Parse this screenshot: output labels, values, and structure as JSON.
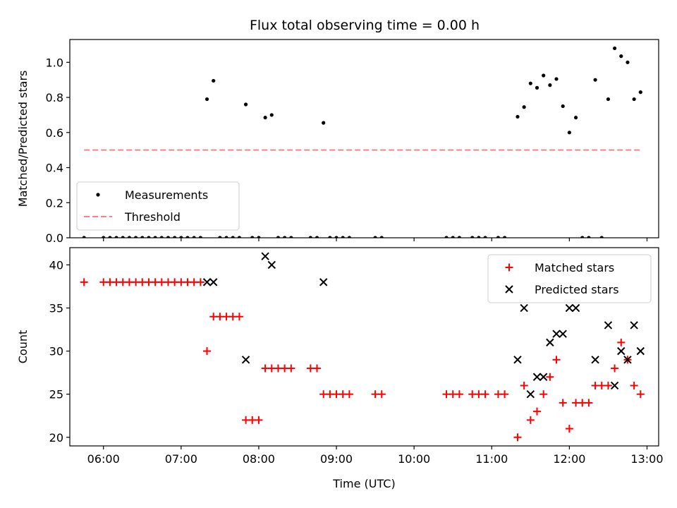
{
  "title": "Flux total observing time = 0.00 h",
  "chart_data": [
    {
      "type": "scatter",
      "panel": "top",
      "ylabel": "Matched/Predicted stars",
      "xlabel": "",
      "xlim": [
        "05:34",
        "13:09"
      ],
      "ylim": [
        0.0,
        1.13
      ],
      "yticks": [
        0.0,
        0.2,
        0.4,
        0.6,
        0.8,
        1.0
      ],
      "ytick_labels": [
        "0.0",
        "0.2",
        "0.4",
        "0.6",
        "0.8",
        "1.0"
      ],
      "grid": false,
      "legend_position": "lower-left",
      "series": [
        {
          "name": "Measurements",
          "marker": "dot",
          "color": "#000000",
          "points": [
            [
              "05:45",
              0
            ],
            [
              "06:00",
              0
            ],
            [
              "06:05",
              0
            ],
            [
              "06:10",
              0
            ],
            [
              "06:15",
              0
            ],
            [
              "06:20",
              0
            ],
            [
              "06:25",
              0
            ],
            [
              "06:30",
              0
            ],
            [
              "06:35",
              0
            ],
            [
              "06:40",
              0
            ],
            [
              "06:45",
              0
            ],
            [
              "06:50",
              0
            ],
            [
              "06:55",
              0
            ],
            [
              "07:00",
              0
            ],
            [
              "07:05",
              0
            ],
            [
              "07:10",
              0
            ],
            [
              "07:15",
              0
            ],
            [
              "07:20",
              0.79
            ],
            [
              "07:25",
              0.895
            ],
            [
              "07:30",
              0
            ],
            [
              "07:35",
              0
            ],
            [
              "07:40",
              0
            ],
            [
              "07:45",
              0
            ],
            [
              "07:50",
              0.76
            ],
            [
              "07:55",
              0
            ],
            [
              "08:00",
              0
            ],
            [
              "08:05",
              0.685
            ],
            [
              "08:10",
              0.7
            ],
            [
              "08:15",
              0
            ],
            [
              "08:20",
              0
            ],
            [
              "08:25",
              0
            ],
            [
              "08:40",
              0
            ],
            [
              "08:45",
              0
            ],
            [
              "08:50",
              0.655
            ],
            [
              "08:55",
              0
            ],
            [
              "09:00",
              0
            ],
            [
              "09:05",
              0
            ],
            [
              "09:10",
              0
            ],
            [
              "09:30",
              0
            ],
            [
              "09:35",
              0
            ],
            [
              "10:25",
              0
            ],
            [
              "10:30",
              0
            ],
            [
              "10:35",
              0
            ],
            [
              "10:45",
              0
            ],
            [
              "10:50",
              0
            ],
            [
              "10:55",
              0
            ],
            [
              "11:05",
              0
            ],
            [
              "11:10",
              0
            ],
            [
              "11:20",
              0.69
            ],
            [
              "11:25",
              0.745
            ],
            [
              "11:30",
              0.88
            ],
            [
              "11:35",
              0.855
            ],
            [
              "11:40",
              0.925
            ],
            [
              "11:45",
              0.87
            ],
            [
              "11:50",
              0.905
            ],
            [
              "11:55",
              0.75
            ],
            [
              "12:00",
              0.6
            ],
            [
              "12:05",
              0.685
            ],
            [
              "12:10",
              0
            ],
            [
              "12:15",
              0
            ],
            [
              "12:20",
              0.9
            ],
            [
              "12:25",
              0
            ],
            [
              "12:30",
              0.79
            ],
            [
              "12:35",
              1.08
            ],
            [
              "12:40",
              1.035
            ],
            [
              "12:45",
              1.0
            ],
            [
              "12:50",
              0.79
            ],
            [
              "12:55",
              0.83
            ]
          ]
        },
        {
          "name": "Threshold",
          "marker": "dashed-line",
          "color": "#ff8080",
          "points": [
            [
              "05:45",
              0.5
            ],
            [
              "12:55",
              0.5
            ]
          ]
        }
      ]
    },
    {
      "type": "scatter",
      "panel": "bottom",
      "xlabel": "Time (UTC)",
      "ylabel": "Count",
      "xlim": [
        "05:34",
        "13:09"
      ],
      "ylim": [
        19.0,
        42.0
      ],
      "yticks": [
        20,
        25,
        30,
        35,
        40
      ],
      "ytick_labels": [
        "20",
        "25",
        "30",
        "35",
        "40"
      ],
      "xticks": [
        "06:00",
        "07:00",
        "08:00",
        "09:00",
        "10:00",
        "11:00",
        "12:00",
        "13:00"
      ],
      "grid": false,
      "legend_position": "top-right",
      "series": [
        {
          "name": "Matched stars",
          "marker": "plus",
          "color": "#ff0000",
          "points": [
            [
              "05:45",
              38
            ],
            [
              "06:00",
              38
            ],
            [
              "06:05",
              38
            ],
            [
              "06:10",
              38
            ],
            [
              "06:15",
              38
            ],
            [
              "06:20",
              38
            ],
            [
              "06:25",
              38
            ],
            [
              "06:30",
              38
            ],
            [
              "06:35",
              38
            ],
            [
              "06:40",
              38
            ],
            [
              "06:45",
              38
            ],
            [
              "06:50",
              38
            ],
            [
              "06:55",
              38
            ],
            [
              "07:00",
              38
            ],
            [
              "07:05",
              38
            ],
            [
              "07:10",
              38
            ],
            [
              "07:15",
              38
            ],
            [
              "07:20",
              30
            ],
            [
              "07:25",
              34
            ],
            [
              "07:30",
              34
            ],
            [
              "07:35",
              34
            ],
            [
              "07:40",
              34
            ],
            [
              "07:45",
              34
            ],
            [
              "07:50",
              22
            ],
            [
              "07:55",
              22
            ],
            [
              "08:00",
              22
            ],
            [
              "08:05",
              28
            ],
            [
              "08:10",
              28
            ],
            [
              "08:15",
              28
            ],
            [
              "08:20",
              28
            ],
            [
              "08:25",
              28
            ],
            [
              "08:40",
              28
            ],
            [
              "08:45",
              28
            ],
            [
              "08:50",
              25
            ],
            [
              "08:55",
              25
            ],
            [
              "09:00",
              25
            ],
            [
              "09:05",
              25
            ],
            [
              "09:10",
              25
            ],
            [
              "09:30",
              25
            ],
            [
              "09:35",
              25
            ],
            [
              "10:25",
              25
            ],
            [
              "10:30",
              25
            ],
            [
              "10:35",
              25
            ],
            [
              "10:45",
              25
            ],
            [
              "10:50",
              25
            ],
            [
              "10:55",
              25
            ],
            [
              "11:05",
              25
            ],
            [
              "11:10",
              25
            ],
            [
              "11:20",
              20
            ],
            [
              "11:25",
              26
            ],
            [
              "11:30",
              22
            ],
            [
              "11:35",
              23
            ],
            [
              "11:40",
              25
            ],
            [
              "11:45",
              27
            ],
            [
              "11:50",
              29
            ],
            [
              "11:55",
              24
            ],
            [
              "12:00",
              21
            ],
            [
              "12:05",
              24
            ],
            [
              "12:10",
              24
            ],
            [
              "12:15",
              24
            ],
            [
              "12:20",
              26
            ],
            [
              "12:25",
              26
            ],
            [
              "12:30",
              26
            ],
            [
              "12:35",
              28
            ],
            [
              "12:40",
              31
            ],
            [
              "12:45",
              29
            ],
            [
              "12:50",
              26
            ],
            [
              "12:55",
              25
            ]
          ]
        },
        {
          "name": "Predicted stars",
          "marker": "x",
          "color": "#000000",
          "points": [
            [
              "07:20",
              38
            ],
            [
              "07:25",
              38
            ],
            [
              "07:50",
              29
            ],
            [
              "08:05",
              41
            ],
            [
              "08:10",
              40
            ],
            [
              "08:50",
              38
            ],
            [
              "11:20",
              29
            ],
            [
              "11:25",
              35
            ],
            [
              "11:30",
              25
            ],
            [
              "11:35",
              27
            ],
            [
              "11:40",
              27
            ],
            [
              "11:45",
              31
            ],
            [
              "11:50",
              32
            ],
            [
              "11:55",
              32
            ],
            [
              "12:00",
              35
            ],
            [
              "12:05",
              35
            ],
            [
              "12:20",
              29
            ],
            [
              "12:30",
              33
            ],
            [
              "12:35",
              26
            ],
            [
              "12:40",
              30
            ],
            [
              "12:45",
              29
            ],
            [
              "12:50",
              33
            ],
            [
              "12:55",
              30
            ]
          ]
        }
      ]
    }
  ]
}
